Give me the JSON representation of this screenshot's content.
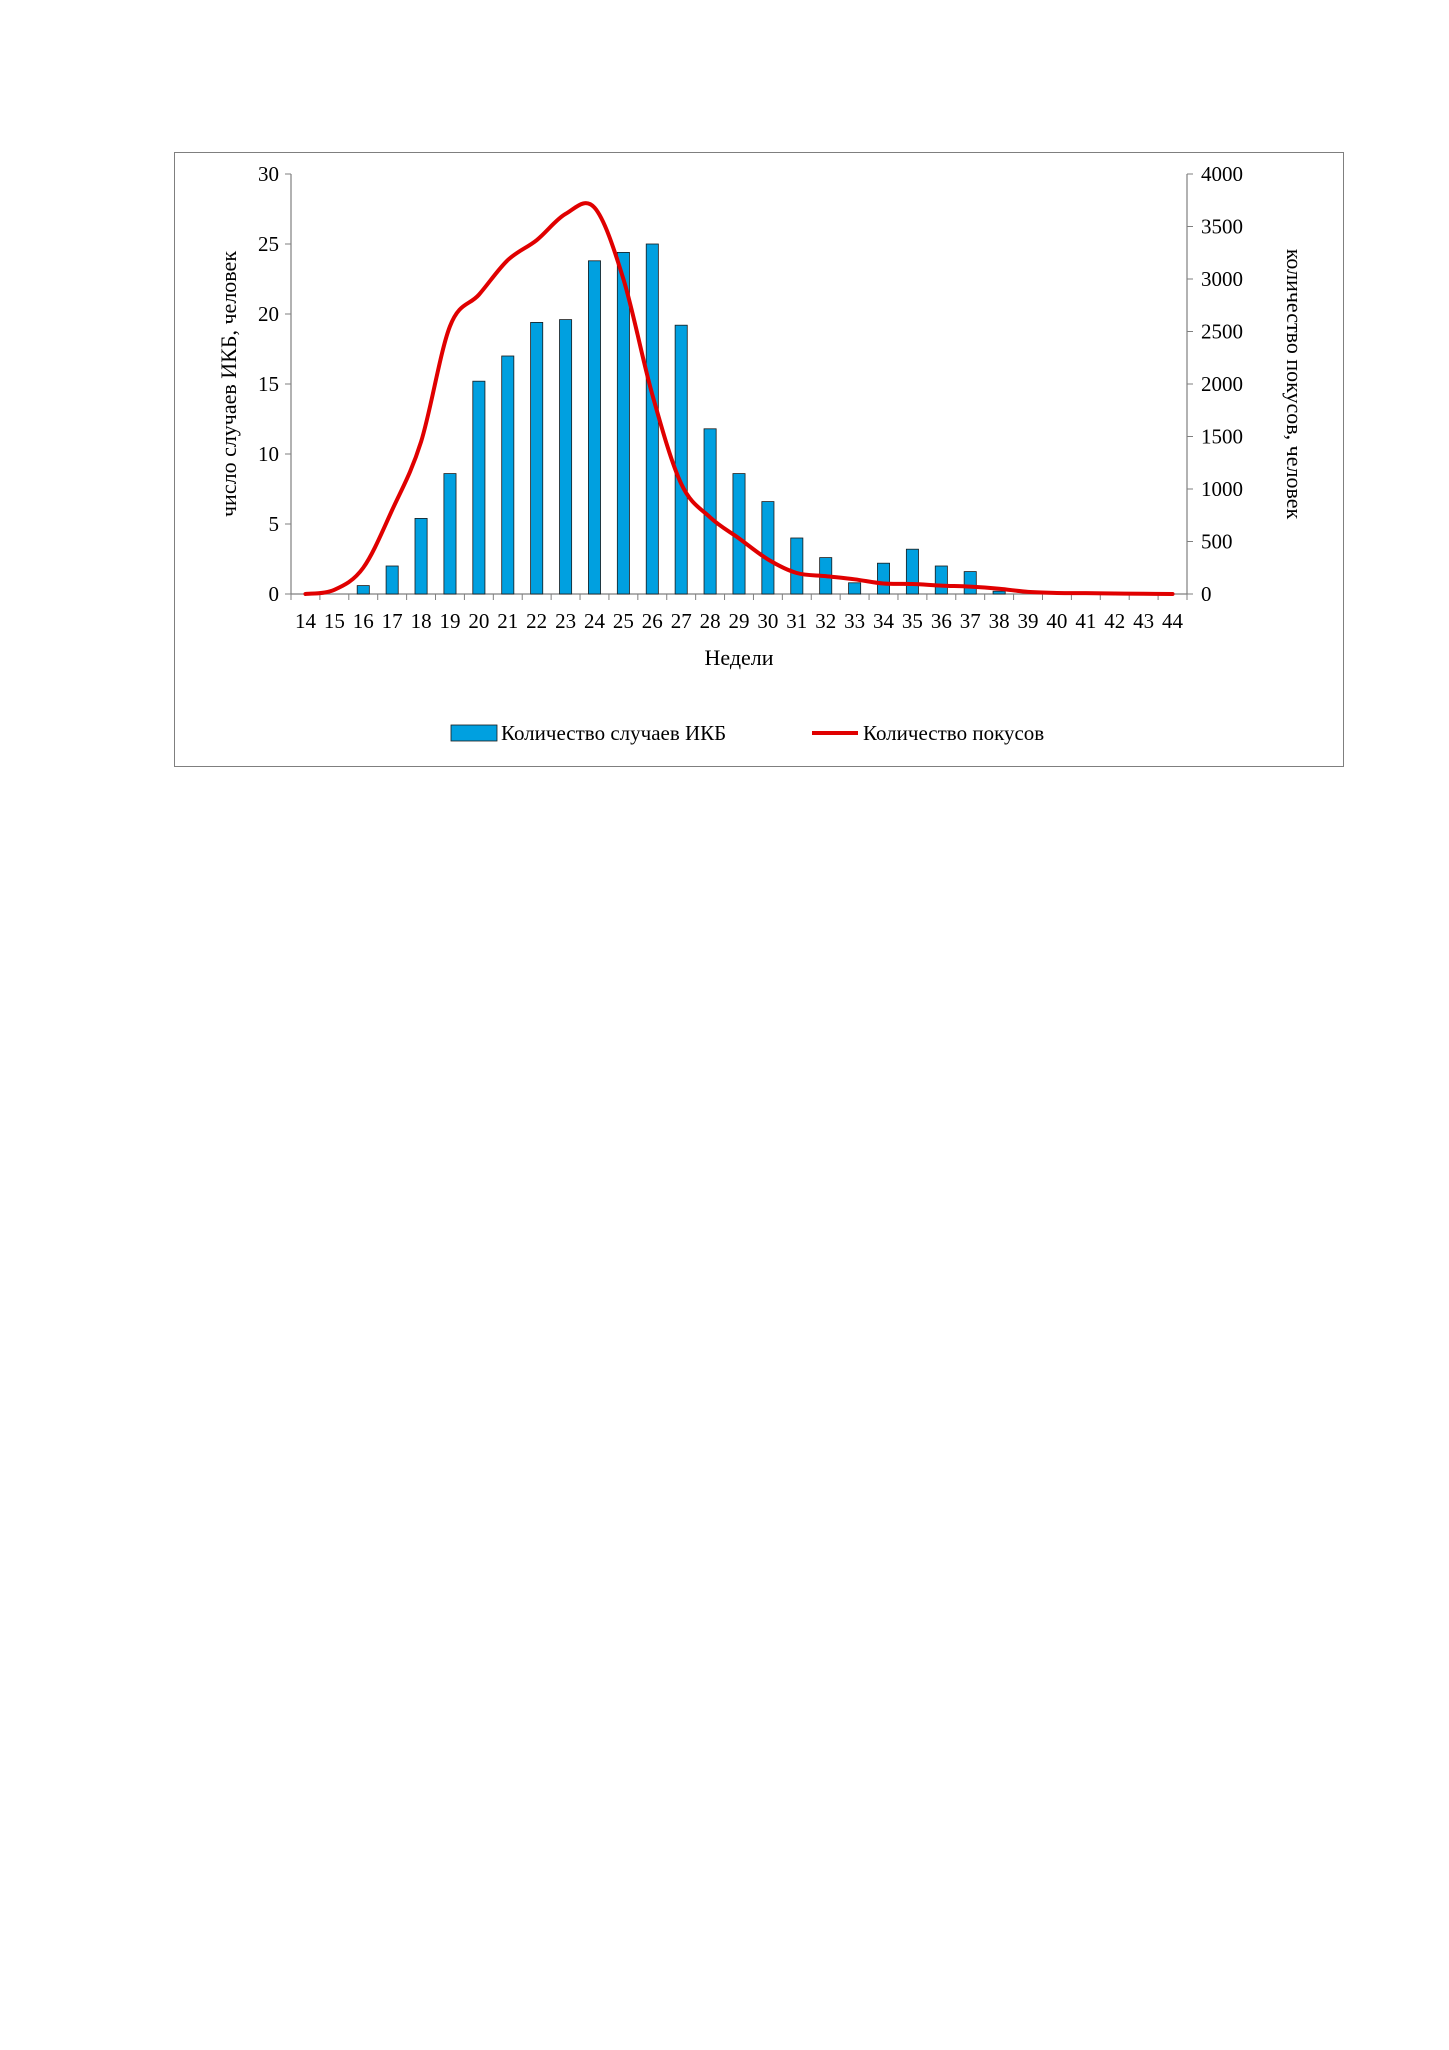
{
  "chart_data": {
    "type": "bar",
    "title": "",
    "xlabel": "Недели",
    "ylabel": "число случаев ИКБ, человек",
    "y2label": "количество покусов, человек",
    "categories": [
      "14",
      "15",
      "16",
      "17",
      "18",
      "19",
      "20",
      "21",
      "22",
      "23",
      "24",
      "25",
      "26",
      "27",
      "28",
      "29",
      "30",
      "31",
      "32",
      "33",
      "34",
      "35",
      "36",
      "37",
      "38",
      "39",
      "40",
      "41",
      "42",
      "43",
      "44"
    ],
    "ylim": [
      0,
      30
    ],
    "yticks": [
      0,
      5,
      10,
      15,
      20,
      25,
      30
    ],
    "y2lim": [
      0,
      4000
    ],
    "y2ticks": [
      0,
      500,
      1000,
      1500,
      2000,
      2500,
      3000,
      3500,
      4000
    ],
    "legend_position": "bottom",
    "grid": false,
    "series": [
      {
        "name": "Количество случаев ИКБ",
        "type": "bar",
        "axis": "left",
        "color": "#00A0E0",
        "values": [
          0,
          0,
          0.6,
          2,
          5.4,
          8.6,
          15.2,
          17,
          19.4,
          19.6,
          23.8,
          24.4,
          25,
          19.2,
          11.8,
          8.6,
          6.6,
          4,
          2.6,
          0.8,
          2.2,
          3.2,
          2,
          1.6,
          0.2,
          0,
          0,
          0,
          0,
          0,
          0
        ]
      },
      {
        "name": "Количество покусов",
        "type": "line",
        "axis": "right",
        "color": "#E00000",
        "values": [
          0,
          40,
          250,
          800,
          1450,
          2550,
          2850,
          3180,
          3370,
          3620,
          3680,
          3000,
          1900,
          1050,
          730,
          530,
          330,
          200,
          170,
          140,
          100,
          95,
          80,
          70,
          50,
          20,
          10,
          8,
          5,
          2,
          0
        ]
      }
    ]
  }
}
